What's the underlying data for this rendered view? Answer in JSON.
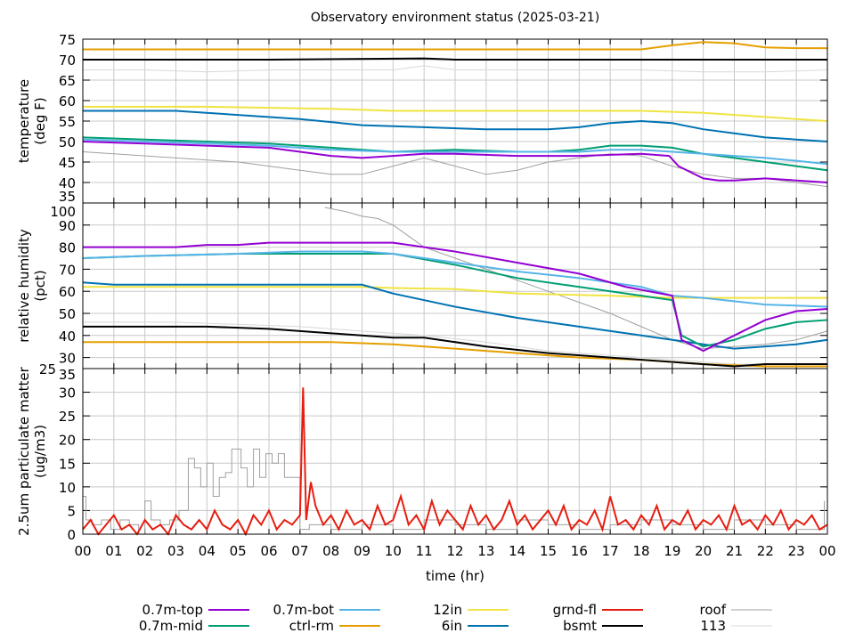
{
  "chart_data": {
    "type": "line",
    "title": "Observatory environment status (2025-03-21)",
    "xlabel": "time (hr)",
    "xlim": [
      0,
      24
    ],
    "xticks": [
      "00",
      "01",
      "02",
      "03",
      "04",
      "05",
      "06",
      "07",
      "08",
      "09",
      "10",
      "11",
      "12",
      "13",
      "14",
      "15",
      "16",
      "17",
      "18",
      "19",
      "20",
      "21",
      "22",
      "23",
      "00"
    ],
    "colors": {
      "0.7m-top": "#9400d3",
      "0.7m-mid": "#009e73",
      "0.7m-bot": "#56b4e9",
      "ctrl-rm": "#e69f00",
      "12in": "#f0e442",
      "6in": "#0072b2",
      "grnd-fl": "#e51e10",
      "bsmt": "#000000",
      "roof": "#a0a0a0",
      "113": "#d8d8d8"
    },
    "legend": {
      "placement": "bottom",
      "entries": [
        "0.7m-top",
        "0.7m-mid",
        "0.7m-bot",
        "ctrl-rm",
        "12in",
        "6in",
        "grnd-fl",
        "bsmt",
        "roof",
        "113"
      ]
    },
    "panels": [
      {
        "ylabel": [
          "temperature",
          "(deg F)"
        ],
        "ylim": [
          35,
          75
        ],
        "yticks": [
          "35",
          "40",
          "45",
          "50",
          "55",
          "60",
          "65",
          "70",
          "75"
        ],
        "series": [
          {
            "name": "113",
            "x": [
              0,
              2,
              4,
              6,
              8,
              10,
              11,
              12,
              14,
              16,
              18,
              20,
              22,
              24
            ],
            "y": [
              67.5,
              67.5,
              67,
              67.5,
              67.5,
              67.5,
              68.5,
              67.5,
              67.5,
              67.5,
              67.5,
              67,
              67,
              67.5
            ]
          },
          {
            "name": "roof",
            "x": [
              0,
              1,
              3,
              5,
              7,
              8,
              9,
              10,
              11,
              12,
              13,
              14,
              15,
              16,
              17,
              18,
              19,
              20,
              21,
              22,
              23,
              24
            ],
            "y": [
              47.5,
              47,
              46,
              45,
              43,
              42,
              42,
              44,
              46,
              44,
              42,
              43,
              45,
              46,
              47,
              46.5,
              44,
              42,
              41,
              41,
              40,
              39
            ]
          },
          {
            "name": "ctrl-rm",
            "x": [
              0,
              4,
              8,
              12,
              16,
              18,
              19,
              20,
              21,
              22,
              23,
              24
            ],
            "y": [
              72.5,
              72.5,
              72.5,
              72.5,
              72.5,
              72.5,
              73.5,
              74.3,
              74,
              73,
              72.8,
              72.8
            ]
          },
          {
            "name": "bsmt",
            "x": [
              0,
              6,
              11,
              12,
              18,
              24
            ],
            "y": [
              70,
              70,
              70.3,
              70,
              70,
              70
            ]
          },
          {
            "name": "12in",
            "x": [
              0,
              4,
              8,
              10,
              12,
              14,
              16,
              18,
              20,
              22,
              24
            ],
            "y": [
              58.5,
              58.5,
              58,
              57.5,
              57.5,
              57.5,
              57.5,
              57.5,
              57,
              56,
              55
            ]
          },
          {
            "name": "6in",
            "x": [
              0,
              3,
              5,
              7,
              9,
              11,
              13,
              15,
              16,
              17,
              18,
              19,
              20,
              21,
              22,
              23,
              24
            ],
            "y": [
              57.5,
              57.5,
              56.5,
              55.5,
              54,
              53.5,
              53,
              53,
              53.5,
              54.5,
              55,
              54.5,
              53,
              52,
              51,
              50.5,
              50
            ]
          },
          {
            "name": "0.7m-mid",
            "x": [
              0,
              2,
              4,
              6,
              8,
              10,
              12,
              14,
              15,
              16,
              17,
              18,
              19,
              20,
              21,
              22,
              23,
              24
            ],
            "y": [
              51,
              50.5,
              50,
              49.5,
              48.5,
              47.5,
              48,
              47.5,
              47.5,
              48,
              49,
              49,
              48.5,
              47,
              46,
              45,
              44,
              43
            ]
          },
          {
            "name": "0.7m-bot",
            "x": [
              0,
              2,
              4,
              6,
              8,
              10,
              12,
              14,
              16,
              17,
              18,
              19,
              20,
              21,
              22,
              23,
              24
            ],
            "y": [
              50.5,
              50,
              49.5,
              49,
              48,
              47.5,
              47.5,
              47.5,
              47.5,
              48,
              48,
              47.5,
              47,
              46.5,
              46,
              45.3,
              44.5
            ]
          },
          {
            "name": "0.7m-top",
            "x": [
              0,
              2,
              4,
              6,
              7,
              8,
              9,
              10,
              11,
              12,
              14,
              16,
              18,
              18.9,
              19.2,
              20,
              20.5,
              21,
              22,
              23,
              24
            ],
            "y": [
              50,
              49.5,
              49,
              48.5,
              47.5,
              46.5,
              46,
              46.5,
              47,
              47,
              46.5,
              46.5,
              47,
              46.5,
              44,
              41,
              40.5,
              40.5,
              41,
              40.5,
              40
            ]
          }
        ]
      },
      {
        "ylabel": [
          "relative humidity",
          "(pct)"
        ],
        "ylim": [
          25,
          100
        ],
        "yticks": [
          "25",
          "30",
          "40",
          "50",
          "60",
          "70",
          "80",
          "90",
          "100"
        ],
        "series": [
          {
            "name": "113",
            "x": [
              0,
              3,
              5,
              7,
              9,
              11,
              13,
              15,
              17,
              19,
              21,
              24
            ],
            "y": [
              46,
              46,
              45,
              44,
              42,
              40,
              37,
              33,
              31,
              29,
              27,
              27
            ]
          },
          {
            "name": "roof",
            "x": [
              7.8,
              8.5,
              9,
              9.5,
              10,
              10.5,
              11,
              12,
              13,
              14,
              15,
              16,
              17,
              18,
              19,
              20,
              21,
              22,
              23,
              24
            ],
            "y": [
              98,
              96,
              94,
              93,
              90,
              85,
              80,
              75,
              70,
              65,
              60,
              55,
              50,
              44,
              38,
              34,
              35,
              36,
              38,
              42
            ]
          },
          {
            "name": "ctrl-rm",
            "x": [
              0,
              8,
              9,
              10,
              12,
              14,
              16,
              18,
              20,
              22,
              24
            ],
            "y": [
              37,
              37,
              36.5,
              36,
              34,
              32,
              30,
              29,
              27,
              26,
              26
            ]
          },
          {
            "name": "bsmt",
            "x": [
              0,
              4,
              6,
              8,
              10,
              11,
              13,
              15,
              17,
              19,
              21,
              22,
              24
            ],
            "y": [
              44,
              44,
              43,
              41,
              39,
              39,
              35,
              32,
              30,
              28,
              26,
              27,
              27
            ]
          },
          {
            "name": "12in",
            "x": [
              0,
              9,
              10,
              12,
              14,
              17,
              19,
              20,
              22,
              24
            ],
            "y": [
              62,
              62,
              61.5,
              61,
              59,
              58,
              57,
              57,
              57,
              57
            ]
          },
          {
            "name": "6in",
            "x": [
              0,
              1,
              2,
              9,
              10,
              12,
              14,
              16,
              18,
              20,
              21,
              23,
              24
            ],
            "y": [
              64,
              63,
              63,
              63,
              59,
              53,
              48,
              44,
              40,
              36,
              34,
              36,
              38
            ]
          },
          {
            "name": "0.7m-mid",
            "x": [
              0,
              2,
              5,
              10,
              12,
              14,
              16,
              18,
              19,
              19.3,
              20,
              21,
              22,
              23,
              24
            ],
            "y": [
              75,
              76,
              77,
              77,
              72,
              66,
              62,
              58,
              56,
              40,
              35,
              38,
              43,
              46,
              47
            ]
          },
          {
            "name": "0.7m-bot",
            "x": [
              0,
              2,
              5,
              7,
              9,
              10,
              12,
              14,
              16,
              18,
              19,
              20,
              22,
              24
            ],
            "y": [
              75,
              76,
              77,
              78,
              78,
              77,
              73,
              69,
              66,
              62,
              58,
              57,
              54,
              53
            ]
          },
          {
            "name": "0.7m-top",
            "x": [
              0,
              3,
              4,
              5,
              6,
              10,
              12,
              14,
              16,
              17.5,
              19,
              19.3,
              20,
              21,
              22,
              23,
              24
            ],
            "y": [
              80,
              80,
              81,
              81,
              82,
              82,
              78,
              73,
              68,
              62,
              58,
              38,
              33,
              40,
              47,
              51,
              52
            ]
          }
        ]
      },
      {
        "ylabel": [
          "2.5um particulate matter",
          "(ug/m3)"
        ],
        "ylim": [
          0,
          35
        ],
        "yticks": [
          "0",
          "5",
          "10",
          "15",
          "20",
          "25",
          "30",
          "35"
        ],
        "series": [
          {
            "name": "roof",
            "step": true,
            "x": [
              0,
              0.1,
              0.3,
              0.6,
              0.9,
              1.2,
              1.5,
              1.8,
              2,
              2.2,
              2.5,
              2.8,
              3.1,
              3.4,
              3.6,
              3.8,
              4,
              4.2,
              4.4,
              4.6,
              4.8,
              5.1,
              5.3,
              5.5,
              5.7,
              5.9,
              6.1,
              6.3,
              6.5,
              6.8,
              7,
              7.3,
              8,
              9,
              10,
              11,
              12,
              13,
              14,
              15,
              16,
              17,
              18,
              19,
              20,
              21,
              22,
              23,
              23.9
            ],
            "y": [
              8,
              3,
              2,
              3,
              1,
              3,
              2,
              0,
              7,
              3,
              2,
              3,
              5,
              16,
              14,
              10,
              15,
              8,
              12,
              13,
              18,
              14,
              10,
              18,
              12,
              17,
              15,
              17,
              12,
              12,
              1,
              2,
              1,
              2,
              1,
              3,
              2,
              1,
              3,
              2,
              1,
              2,
              3,
              2,
              1,
              3,
              2,
              1,
              7
            ]
          },
          {
            "name": "grnd-fl",
            "x": [
              0,
              0.25,
              0.5,
              0.75,
              1,
              1.25,
              1.5,
              1.75,
              2,
              2.25,
              2.5,
              2.75,
              3,
              3.25,
              3.5,
              3.75,
              4,
              4.25,
              4.5,
              4.75,
              5,
              5.25,
              5.5,
              5.75,
              6,
              6.25,
              6.5,
              6.75,
              7,
              7.1,
              7.2,
              7.35,
              7.5,
              7.75,
              8,
              8.25,
              8.5,
              8.75,
              9,
              9.25,
              9.5,
              9.75,
              10,
              10.25,
              10.5,
              10.75,
              11,
              11.25,
              11.5,
              11.75,
              12,
              12.25,
              12.5,
              12.75,
              13,
              13.25,
              13.5,
              13.75,
              14,
              14.25,
              14.5,
              14.75,
              15,
              15.25,
              15.5,
              15.75,
              16,
              16.25,
              16.5,
              16.75,
              17,
              17.25,
              17.5,
              17.75,
              18,
              18.25,
              18.5,
              18.75,
              19,
              19.25,
              19.5,
              19.75,
              20,
              20.25,
              20.5,
              20.75,
              21,
              21.25,
              21.5,
              21.75,
              22,
              22.25,
              22.5,
              22.75,
              23,
              23.25,
              23.5,
              23.75,
              24
            ],
            "y": [
              1,
              3,
              0,
              2,
              4,
              1,
              2,
              0,
              3,
              1,
              2,
              0,
              4,
              2,
              1,
              3,
              1,
              5,
              2,
              1,
              3,
              0,
              4,
              2,
              5,
              1,
              3,
              2,
              4,
              31,
              3,
              11,
              6,
              2,
              4,
              1,
              5,
              2,
              3,
              1,
              6,
              2,
              3,
              8,
              2,
              4,
              1,
              7,
              2,
              5,
              3,
              1,
              6,
              2,
              4,
              1,
              3,
              7,
              2,
              4,
              1,
              3,
              5,
              2,
              6,
              1,
              3,
              2,
              5,
              1,
              8,
              2,
              3,
              1,
              4,
              2,
              6,
              1,
              3,
              2,
              5,
              1,
              3,
              2,
              4,
              1,
              6,
              2,
              3,
              1,
              4,
              2,
              5,
              1,
              3,
              2,
              4,
              1,
              2
            ]
          }
        ]
      }
    ]
  }
}
